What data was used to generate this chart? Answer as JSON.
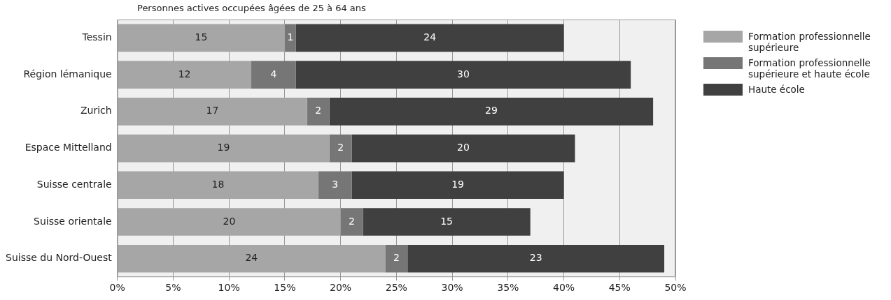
{
  "chart_data": {
    "type": "bar",
    "orientation": "horizontal",
    "stacked": true,
    "title": "Personnes actives occupées âgées de 25 à 64 ans",
    "categories": [
      "Tessin",
      "Région lémanique",
      "Zurich",
      "Espace Mittelland",
      "Suisse centrale",
      "Suisse orientale",
      "Suisse du Nord-Ouest"
    ],
    "series": [
      {
        "name": "Formation professionnelle supérieure",
        "color": "#a6a6a6",
        "values": [
          15,
          12,
          17,
          19,
          18,
          20,
          24
        ]
      },
      {
        "name": "Formation professionnelle supérieure et haute école",
        "color": "#767676",
        "values": [
          1,
          4,
          2,
          2,
          3,
          2,
          2
        ]
      },
      {
        "name": "Haute école",
        "color": "#404040",
        "values": [
          24,
          30,
          29,
          20,
          19,
          15,
          23
        ]
      }
    ],
    "xlim": [
      0,
      50
    ],
    "xticks": [
      {
        "value": 0,
        "label": "0%"
      },
      {
        "value": 5,
        "label": "5%"
      },
      {
        "value": 10,
        "label": "10%"
      },
      {
        "value": 15,
        "label": "15%"
      },
      {
        "value": 20,
        "label": "20%"
      },
      {
        "value": 25,
        "label": "25%"
      },
      {
        "value": 30,
        "label": "30%"
      },
      {
        "value": 35,
        "label": "35%"
      },
      {
        "value": 40,
        "label": "40%"
      },
      {
        "value": 45,
        "label": "45%"
      },
      {
        "value": 50,
        "label": "50%"
      }
    ],
    "grid": "x",
    "legend": "top right",
    "data_labels": true
  }
}
